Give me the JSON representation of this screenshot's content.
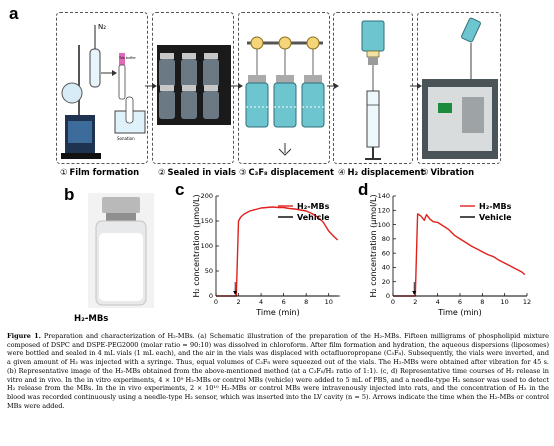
{
  "panels": {
    "a": "a",
    "b": "b",
    "c": "c",
    "d": "d"
  },
  "steps": [
    {
      "num": "①",
      "label": "Film formation"
    },
    {
      "num": "②",
      "label": "Sealed in vials"
    },
    {
      "num": "③",
      "label": "C₃F₈ displacement"
    },
    {
      "num": "④",
      "label": "H₂ displacement"
    },
    {
      "num": "⑤",
      "label": "Vibration"
    }
  ],
  "step1": {
    "gas_label": "N₂",
    "buffer_label": "Tris buffer",
    "bath_label": "Sonation"
  },
  "photo_b": {
    "label": "H₂-MBs"
  },
  "chart_data": [
    {
      "type": "line",
      "panel": "c",
      "ylabel": "H₂ concentration (μmol/L)",
      "xlabel": "Time (min)",
      "xlim": [
        0,
        11
      ],
      "ylim": [
        0,
        200
      ],
      "xticks": [
        0,
        2,
        4,
        6,
        8,
        10
      ],
      "yticks": [
        0,
        50,
        100,
        150,
        200
      ],
      "legend_placement": "top-right",
      "arrow_x": 1.7,
      "series": [
        {
          "name": "H₂-MBs",
          "color": "#e0211d",
          "x": [
            0,
            1.8,
            2.0,
            2.2,
            2.5,
            3.0,
            3.5,
            4.0,
            4.5,
            5.0,
            5.5,
            6.0,
            6.5,
            7.0,
            7.5,
            8.0,
            8.5,
            9.0,
            9.5,
            10.0,
            10.5,
            10.8
          ],
          "y": [
            0,
            0,
            150,
            158,
            164,
            170,
            173,
            176,
            177,
            178,
            177,
            177,
            175,
            174,
            172,
            170,
            165,
            158,
            148,
            130,
            118,
            112
          ]
        },
        {
          "name": "Vehicle",
          "color": "#000000",
          "x": [
            0,
            2,
            4,
            6,
            8,
            10,
            10.8
          ],
          "y": [
            0,
            0,
            0,
            0,
            0,
            0,
            0
          ]
        }
      ]
    },
    {
      "type": "line",
      "panel": "d",
      "ylabel": "H₂ concentration (μmol/L)",
      "xlabel": "Time (min)",
      "xlim": [
        0,
        12
      ],
      "ylim": [
        0,
        140
      ],
      "xticks": [
        0,
        2,
        4,
        6,
        8,
        10,
        12
      ],
      "yticks": [
        0,
        20,
        40,
        60,
        80,
        100,
        120,
        140
      ],
      "legend_placement": "top-right",
      "arrow_x": 1.9,
      "series": [
        {
          "name": "H₂-MBs",
          "color": "#e0211d",
          "x": [
            0,
            2.0,
            2.2,
            2.5,
            2.8,
            3.0,
            3.3,
            3.6,
            4.0,
            4.5,
            5.0,
            5.5,
            6.0,
            6.5,
            7.0,
            7.5,
            8.0,
            8.5,
            9.0,
            9.5,
            10.0,
            10.5,
            11.0,
            11.5,
            11.8
          ],
          "y": [
            0,
            0,
            115,
            112,
            106,
            114,
            108,
            104,
            103,
            98,
            93,
            85,
            80,
            75,
            70,
            66,
            62,
            58,
            55,
            50,
            46,
            42,
            38,
            34,
            30
          ]
        },
        {
          "name": "Vehicle",
          "color": "#000000",
          "x": [
            0,
            2,
            4,
            6,
            8,
            10,
            12
          ],
          "y": [
            0,
            0,
            0,
            0,
            0,
            0,
            0
          ]
        }
      ]
    }
  ],
  "caption": {
    "figure_label": "Figure 1.",
    "text": " Preparation and characterization of H₂-MBs. (a) Schematic illustration of the preparation of the H₂-MBs. Fifteen milligrams of phospholipid mixture composed of DSPC and DSPE-PEG2000 (molar ratio = 90:10) was dissolved in chloroform. After film formation and hydration, the aqueous dispersions (liposomes) were bottled and sealed in 4 mL vials (1 mL each), and the air in the vials was displaced with octafluoropropane (C₃F₈). Subsequently, the vials were inverted, and a given amount of H₂ was injected with a syringe. Thus, equal volumes of C₃F₈ were squeezed out of the vials. The H₂-MBs were obtained after vibration for 45 s. (b) Representative image of the H₂-MBs obtained from the above-mentioned method (at a C₃F₈/H₂ ratio of 1:1). (c, d) Representative time courses of H₂ release in vitro and in vivo. In the in vitro experiments, 4 × 10⁹ H₂-MBs or control MBs (vehicle) were added to 5 mL of PBS, and a needle-type H₂ sensor was used to detect H₂ release from the MBs. In the in vivo experiments, 2 × 10¹⁰ H₂-MBs or control MBs were intravenously injected into rats, and the concentration of H₂ in the blood was recorded continuously using a needle-type H₂ sensor, which was inserted into the LV cavity (n = 5). Arrows indicate the time when the H₂-MBs or control MBs were added."
  }
}
